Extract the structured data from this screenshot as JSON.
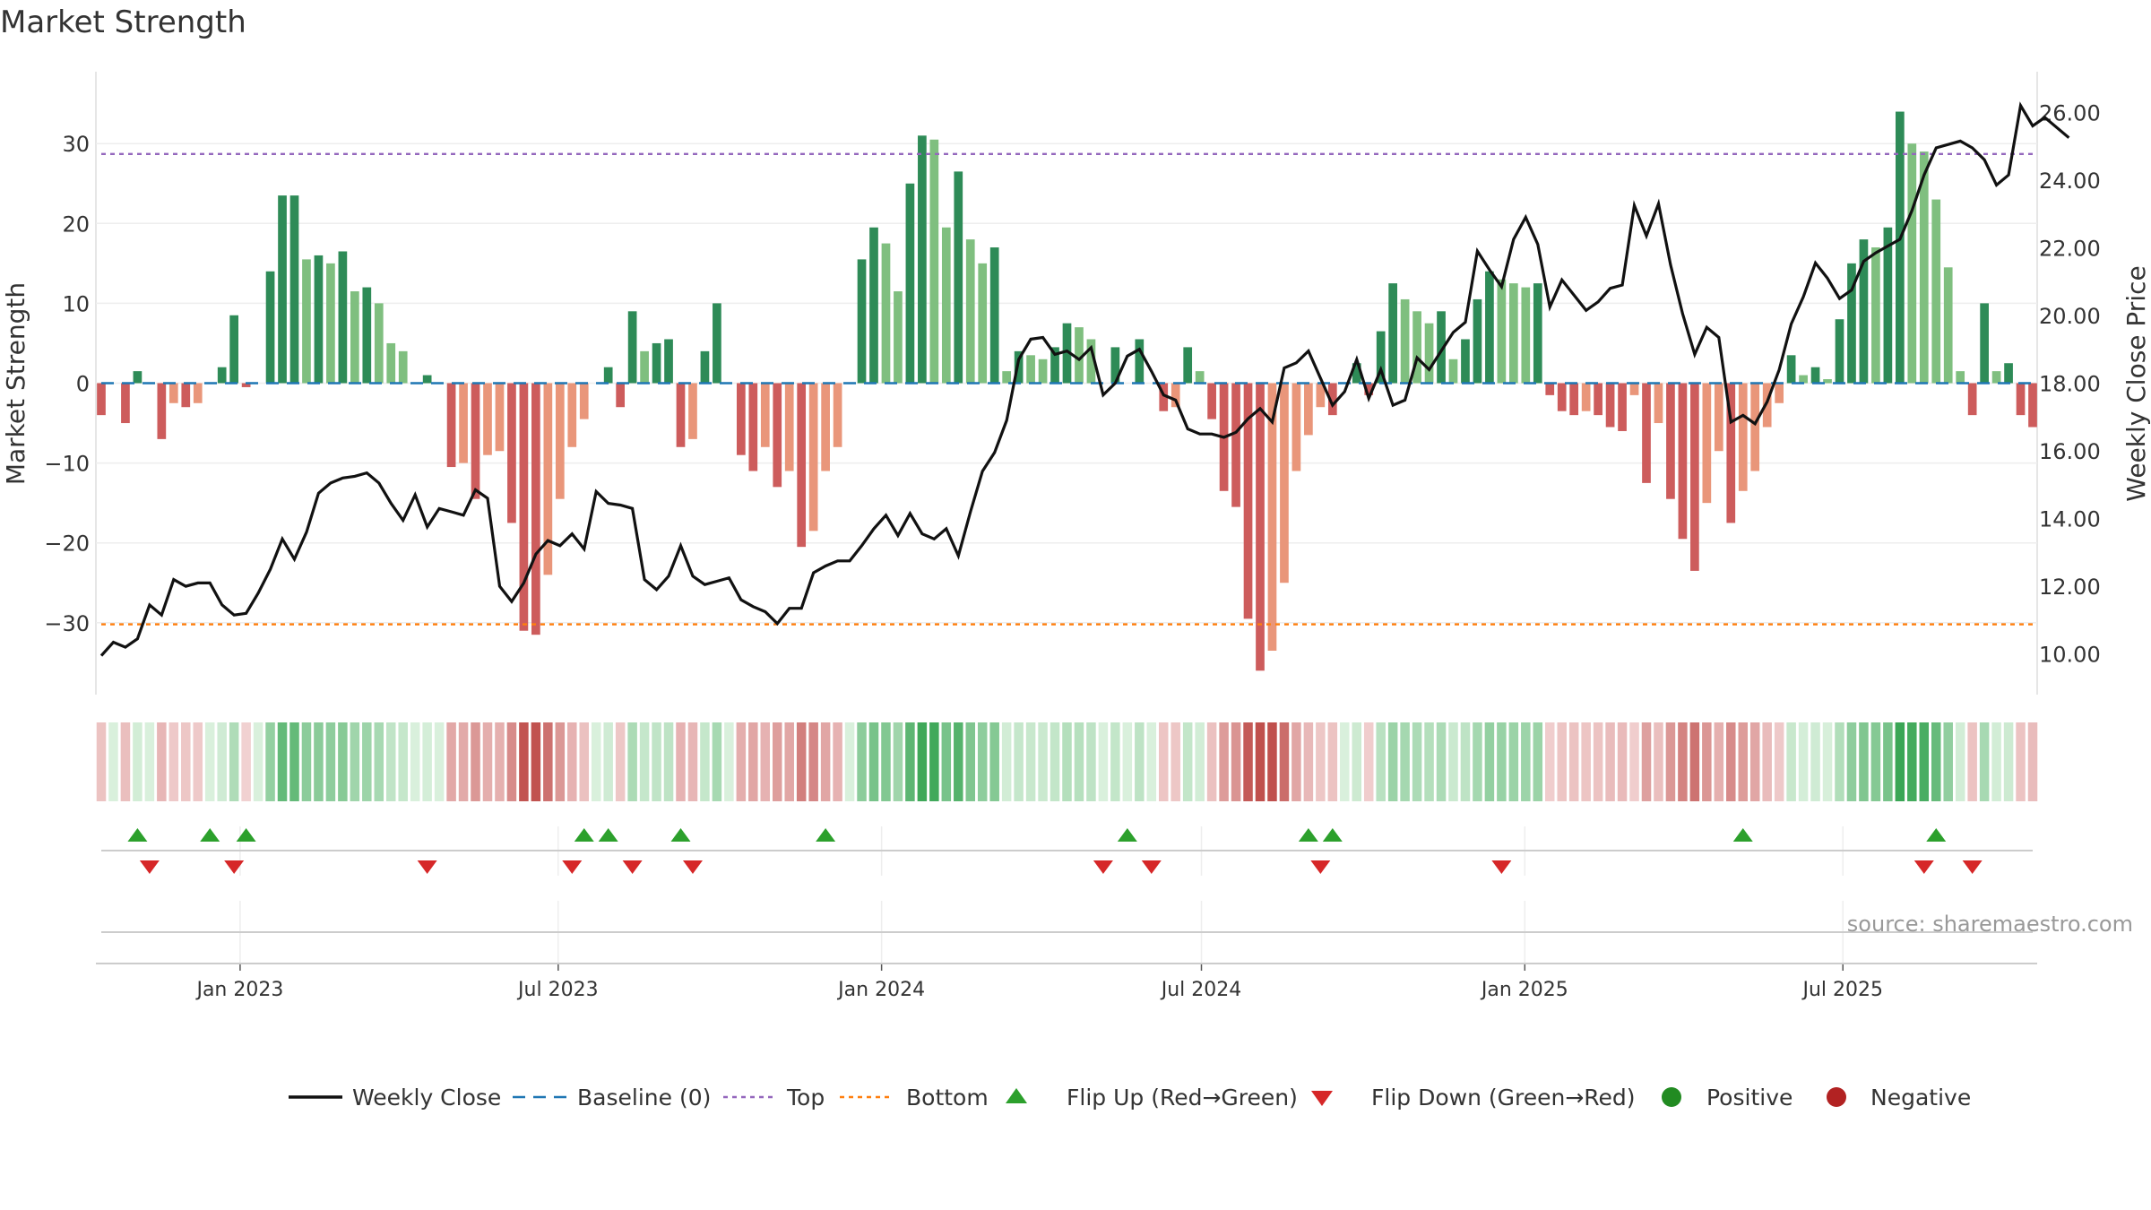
{
  "title": "Market Strength",
  "source": "source: sharemaestro.com",
  "colors": {
    "pos_strong": "#2e8b57",
    "pos_weak": "#7fbf7f",
    "neg_strong": "#cd5c5c",
    "neg_weak": "#e9967a",
    "price_line": "#111111",
    "baseline": "#1f77b4",
    "top_line": "#9467bd",
    "bottom_line": "#ff7f0e",
    "flip_up": "#2ca02c",
    "flip_down": "#d62728",
    "positive": "#228b22",
    "negative": "#b22222"
  },
  "legend": [
    {
      "key": "close",
      "label": "Weekly Close"
    },
    {
      "key": "baseline",
      "label": "Baseline (0)"
    },
    {
      "key": "top",
      "label": "Top"
    },
    {
      "key": "bottom",
      "label": "Bottom"
    },
    {
      "key": "flip_up",
      "label": "Flip Up (Red→Green)"
    },
    {
      "key": "flip_down",
      "label": "Flip Down (Green→Red)"
    },
    {
      "key": "positive",
      "label": "Positive"
    },
    {
      "key": "negative",
      "label": "Negative"
    }
  ],
  "chart_data": {
    "type": "bar",
    "title": "Market Strength",
    "ylabel": "Market Strength",
    "y2label": "Weekly Close Price",
    "ylim": [
      -39,
      39
    ],
    "y2lim": [
      8.8,
      27.2
    ],
    "yticks": [
      30,
      20,
      10,
      0,
      -10,
      -20,
      -30
    ],
    "yticklabels": [
      "30",
      "20",
      "10",
      "0",
      "−10",
      "−20",
      "−30"
    ],
    "y2ticks": [
      26,
      24,
      22,
      20,
      18,
      16,
      14,
      12,
      10
    ],
    "y2ticklabels": [
      "26.00",
      "24.00",
      "22.00",
      "20.00",
      "18.00",
      "16.00",
      "14.00",
      "12.00",
      "10.00"
    ],
    "top_level": 28.7,
    "bottom_level": -30.2,
    "x_start": "2022-10-14",
    "x_end": "2025-10-17",
    "xticks": [
      "2023-01-01",
      "2023-07-01",
      "2024-01-01",
      "2024-07-01",
      "2025-01-01",
      "2025-07-01"
    ],
    "xticklabels": [
      "Jan 2023",
      "Jul 2023",
      "Jan 2024",
      "Jul 2024",
      "Jan 2025",
      "Jul 2025"
    ],
    "strength": [
      -4,
      0,
      -5,
      1.5,
      0,
      -7,
      -2.5,
      -3,
      -2.5,
      0,
      2,
      8.5,
      -0.5,
      0,
      14,
      23.5,
      23.5,
      15.5,
      16,
      15,
      16.5,
      11.5,
      12,
      10,
      5,
      4,
      0,
      1,
      0,
      -10.5,
      -10,
      -14.5,
      -9,
      -8.5,
      -17.5,
      -31,
      -31.5,
      -24,
      -14.5,
      -8,
      -4.5,
      0,
      2,
      -3,
      9,
      4,
      5,
      5.5,
      -8,
      -7,
      4,
      10,
      0,
      -9,
      -11,
      -8,
      -13,
      -11,
      -20.5,
      -18.5,
      -11,
      -8,
      0,
      15.5,
      19.5,
      17.5,
      11.5,
      25,
      31,
      30.5,
      19.5,
      26.5,
      18,
      15,
      17,
      1.5,
      4,
      3.5,
      3,
      4.5,
      7.5,
      7,
      5.5,
      0,
      4.5,
      0,
      5.5,
      0,
      -3.5,
      -3,
      4.5,
      1.5,
      -4.5,
      -13.5,
      -15.5,
      -29.5,
      -36,
      -33.5,
      -25,
      -11,
      -6.5,
      -3,
      -4,
      0,
      2.5,
      -1.5,
      6.5,
      12.5,
      10.5,
      9,
      7.5,
      9,
      3,
      5.5,
      10.5,
      14,
      13,
      12.5,
      12,
      12.5,
      -1.5,
      -3.5,
      -4,
      -3.5,
      -4,
      -5.5,
      -6,
      -1.5,
      -12.5,
      -5,
      -14.5,
      -19.5,
      -23.5,
      -15,
      -8.5,
      -17.5,
      -13.5,
      -11,
      -5.5,
      -2.5,
      3.5,
      1,
      2,
      0.5,
      8,
      15,
      18,
      17,
      19.5,
      34,
      30,
      29,
      23,
      14.5,
      1.5,
      -4,
      10,
      1.5,
      2.5,
      -4,
      -5.5
    ],
    "close": [
      9.95,
      10.35,
      10.2,
      10.45,
      11.45,
      11.15,
      12.2,
      12.0,
      12.1,
      12.1,
      11.45,
      11.15,
      11.2,
      11.8,
      12.5,
      13.4,
      12.8,
      13.6,
      14.75,
      15.05,
      15.2,
      15.25,
      15.35,
      15.05,
      14.45,
      13.95,
      14.7,
      13.75,
      14.3,
      14.2,
      14.1,
      14.85,
      14.6,
      12.0,
      11.55,
      12.1,
      12.95,
      13.35,
      13.2,
      13.55,
      13.1,
      14.8,
      14.45,
      14.4,
      14.3,
      12.2,
      11.9,
      12.3,
      13.2,
      12.3,
      12.05,
      12.15,
      12.25,
      11.6,
      11.4,
      11.25,
      10.9,
      11.35,
      11.35,
      12.4,
      12.6,
      12.75,
      12.75,
      13.2,
      13.7,
      14.1,
      13.5,
      14.15,
      13.55,
      13.4,
      13.7,
      12.9,
      14.2,
      15.4,
      15.95,
      16.9,
      18.7,
      19.3,
      19.35,
      18.85,
      18.95,
      18.7,
      19.05,
      17.65,
      18.0,
      18.8,
      19.0,
      18.35,
      17.65,
      17.5,
      16.65,
      16.5,
      16.5,
      16.4,
      16.55,
      16.95,
      17.25,
      16.85,
      18.45,
      18.6,
      18.95,
      18.15,
      17.35,
      17.75,
      18.7,
      17.55,
      18.4,
      17.35,
      17.5,
      18.75,
      18.4,
      18.95,
      19.5,
      19.8,
      21.9,
      21.35,
      20.85,
      22.25,
      22.9,
      22.1,
      20.25,
      21.05,
      20.6,
      20.15,
      20.4,
      20.8,
      20.9,
      23.25,
      22.35,
      23.3,
      21.5,
      20.05,
      18.85,
      19.65,
      19.35,
      16.85,
      17.05,
      16.8,
      17.45,
      18.4,
      19.75,
      20.55,
      21.55,
      21.1,
      20.5,
      20.75,
      21.6,
      21.85,
      22.05,
      22.25,
      23.1,
      24.15,
      24.95,
      25.05,
      25.15,
      24.95,
      24.6,
      23.85,
      24.15,
      26.2,
      25.6,
      25.85,
      25.55,
      25.25
    ],
    "flip_up_weeks": [
      3,
      9,
      12,
      40,
      42,
      48,
      60,
      85,
      100,
      102,
      136,
      152
    ],
    "flip_down_weeks": [
      4,
      11,
      27,
      39,
      44,
      49,
      83,
      87,
      101,
      116,
      151,
      155
    ]
  }
}
